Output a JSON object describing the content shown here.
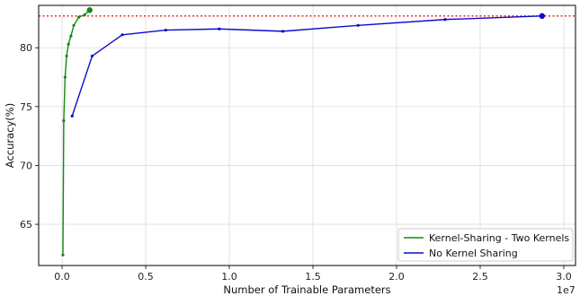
{
  "chart_data": {
    "type": "line",
    "xlabel": "Number of Trainable Parameters",
    "ylabel": "Accuracy(%)",
    "x_offset_label": "1e7",
    "xlim": [
      -1400000,
      30700000
    ],
    "ylim": [
      61.5,
      83.6
    ],
    "x_ticks": [
      0,
      5000000,
      10000000,
      15000000,
      20000000,
      25000000,
      30000000
    ],
    "x_tick_labels": [
      "0.0",
      "0.5",
      "1.0",
      "1.5",
      "2.0",
      "2.5",
      "3.0"
    ],
    "y_ticks": [
      65,
      70,
      75,
      80
    ],
    "y_tick_labels": [
      "65",
      "70",
      "75",
      "80"
    ],
    "grid": true,
    "legend_position": "lower-right",
    "reference_line": {
      "y": 82.7,
      "color": "#e41a1c",
      "style": "dotted"
    },
    "series": [
      {
        "name": "Kernel-Sharing - Two Kernels",
        "color": "#128a12",
        "x": [
          50000,
          100000,
          180000,
          270000,
          380000,
          530000,
          700000,
          1000000,
          1350000,
          1650000
        ],
        "y": [
          62.4,
          73.8,
          77.5,
          79.3,
          80.3,
          81.0,
          81.9,
          82.6,
          82.8,
          83.2
        ]
      },
      {
        "name": "No Kernel Sharing",
        "color": "#0a0ad0",
        "x": [
          600000,
          1800000,
          3600000,
          6200000,
          9400000,
          13200000,
          17700000,
          22900000,
          28700000
        ],
        "y": [
          74.2,
          79.3,
          81.1,
          81.5,
          81.6,
          81.4,
          81.9,
          82.4,
          82.7
        ]
      }
    ]
  }
}
